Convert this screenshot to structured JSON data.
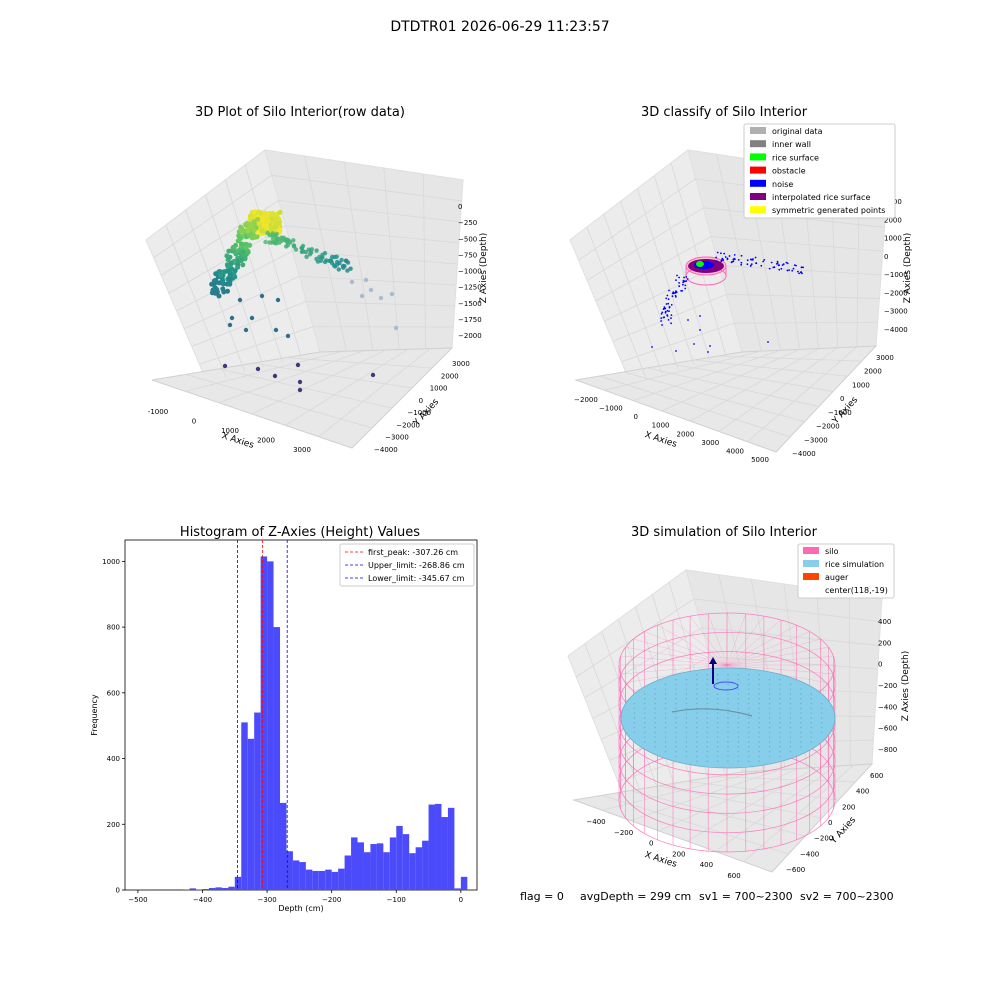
{
  "suptitle": "DTDTR01 2026-06-29 11:23:57",
  "footer": {
    "flag": "flag = 0",
    "avg": "avgDepth = 299 cm",
    "sv1": "sv1 = 700~2300",
    "sv2": "sv2 = 700~2300"
  },
  "colors": {
    "hist_bar": "#4b4bfb",
    "peak_line": "#ff0000",
    "limit_line": "#0000ff",
    "silo": "#ff69b4",
    "rice": "#87ceeb",
    "auger": "#ff4500",
    "rice_surface": "#00ff00",
    "obstacle": "#ff0000",
    "noise": "#0000ff",
    "interpolated": "#800080",
    "symmetric": "#ffff00",
    "original": "#b0b0b0",
    "inner_wall": "#808080"
  },
  "chart_data": [
    {
      "type": "scatter",
      "title": "3D Plot of Silo Interior(row data)",
      "xlabel": "X Axies",
      "ylabel": "Y Axies",
      "zlabel": "Z Axies (Depth)",
      "x_ticks": [
        "-1000",
        "0",
        "1000",
        "2000",
        "3000"
      ],
      "y_ticks": [
        "−4000",
        "−3000",
        "−2000",
        "−1000",
        "0",
        "1000",
        "2000",
        "3000"
      ],
      "z_ticks": [
        "0",
        "−250",
        "−500",
        "−750",
        "−1000",
        "−1250",
        "−1500",
        "−1750",
        "−2000"
      ],
      "xlim": [
        -1300,
        3800
      ],
      "ylim": [
        -4300,
        3600
      ],
      "zlim": [
        -2100,
        100
      ]
    },
    {
      "type": "scatter",
      "title": "3D classify of Silo Interior",
      "xlabel": "X Axies",
      "ylabel": "Y Axies",
      "zlabel": "Z Axies (Depth)",
      "x_ticks": [
        "−2000",
        "−1000",
        "0",
        "1000",
        "2000",
        "3000",
        "4000",
        "5000"
      ],
      "y_ticks": [
        "−4000",
        "−3000",
        "−2000",
        "−1000",
        "0",
        "1000",
        "2000",
        "3000"
      ],
      "z_ticks": [
        "3000",
        "2000",
        "1000",
        "0",
        "−1000",
        "−2000",
        "−3000",
        "−4000"
      ],
      "legend": [
        "original data",
        "inner wall",
        "rice surface",
        "obstacle",
        "noise",
        "interpolated rice surface",
        "symmetric generated points"
      ],
      "legend_loc": "top-right"
    },
    {
      "type": "bar",
      "title": "Histogram of Z-Axies (Height) Values",
      "xlabel": "Depth (cm)",
      "ylabel": "Frequency",
      "x_ticks": [
        "−500",
        "−400",
        "−300",
        "−200",
        "−100",
        "0"
      ],
      "y_ticks": [
        "0",
        "200",
        "400",
        "600",
        "800",
        "1000"
      ],
      "xlim": [
        -520,
        25
      ],
      "ylim": [
        0,
        1065
      ],
      "bin_width": 10,
      "bin_starts": [
        -480,
        -470,
        -460,
        -450,
        -440,
        -430,
        -420,
        -410,
        -400,
        -390,
        -380,
        -370,
        -360,
        -350,
        -340,
        -330,
        -320,
        -310,
        -300,
        -290,
        -280,
        -270,
        -260,
        -250,
        -240,
        -230,
        -220,
        -210,
        -200,
        -190,
        -180,
        -170,
        -160,
        -150,
        -140,
        -130,
        -120,
        -110,
        -100,
        -90,
        -80,
        -70,
        -60,
        -50,
        -40,
        -30,
        -20,
        -10,
        0
      ],
      "counts": [
        2,
        2,
        2,
        2,
        2,
        1,
        5,
        1,
        3,
        6,
        8,
        6,
        10,
        40,
        510,
        460,
        540,
        1015,
        1000,
        800,
        265,
        118,
        90,
        85,
        62,
        58,
        58,
        62,
        55,
        65,
        105,
        160,
        145,
        115,
        140,
        142,
        115,
        160,
        195,
        170,
        112,
        130,
        150,
        260,
        262,
        222,
        250,
        5,
        40
      ],
      "lines": [
        {
          "label": "first_peak: -307.26 cm",
          "x": -307.26,
          "style": "red-dashed"
        },
        {
          "label": "Upper_limit: -268.86 cm",
          "x": -268.86,
          "style": "blue-dashed"
        },
        {
          "label": "Lower_limit: -345.67 cm",
          "x": -345.67,
          "style": "blue-dashed"
        }
      ],
      "legend_loc": "top-right"
    },
    {
      "type": "scatter",
      "title": "3D simulation of Silo Interior",
      "xlabel": "X Axies",
      "ylabel": "Y Axies",
      "zlabel": "Z Axies (Depth)",
      "x_ticks": [
        "−400",
        "−200",
        "0",
        "200",
        "400",
        "600"
      ],
      "y_ticks": [
        "−600",
        "−400",
        "−200",
        "0",
        "200",
        "400",
        "600"
      ],
      "z_ticks": [
        "400",
        "200",
        "0",
        "−200",
        "−400",
        "−600",
        "−800"
      ],
      "legend": [
        "silo",
        "rice simulation",
        "auger",
        "center(118,-19)"
      ],
      "legend_loc": "top-right"
    }
  ]
}
